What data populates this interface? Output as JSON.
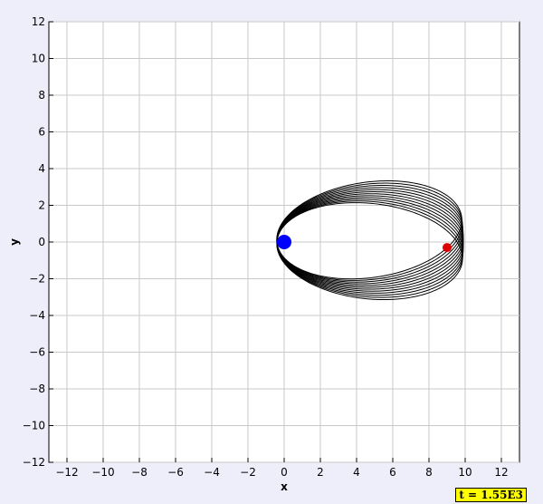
{
  "chart_data": {
    "type": "line",
    "title": "",
    "xlabel": "x",
    "ylabel": "y",
    "xlim": [
      -13,
      13
    ],
    "ylim": [
      -12,
      12
    ],
    "grid": true,
    "xticks": [
      -12,
      -10,
      -8,
      -6,
      -4,
      -2,
      0,
      2,
      4,
      6,
      8,
      10,
      12
    ],
    "yticks": [
      -12,
      -10,
      -8,
      -6,
      -4,
      -2,
      0,
      2,
      4,
      6,
      8,
      10,
      12
    ],
    "orbit": {
      "focus": [
        0,
        0
      ],
      "apoapsis_x": 9.9,
      "periapsis_x": -0.4,
      "semi_minor": 2.6,
      "precession_start_deg": 8,
      "precession_end_deg": -6,
      "trace_count": 12,
      "color": "#000000"
    },
    "bodies": [
      {
        "name": "central",
        "x": 0.0,
        "y": 0.0,
        "color": "#0000ff"
      },
      {
        "name": "orbiter",
        "x": 9.0,
        "y": -0.3,
        "color": "#dd0000"
      }
    ]
  },
  "time_label": "t = 1.55E3"
}
